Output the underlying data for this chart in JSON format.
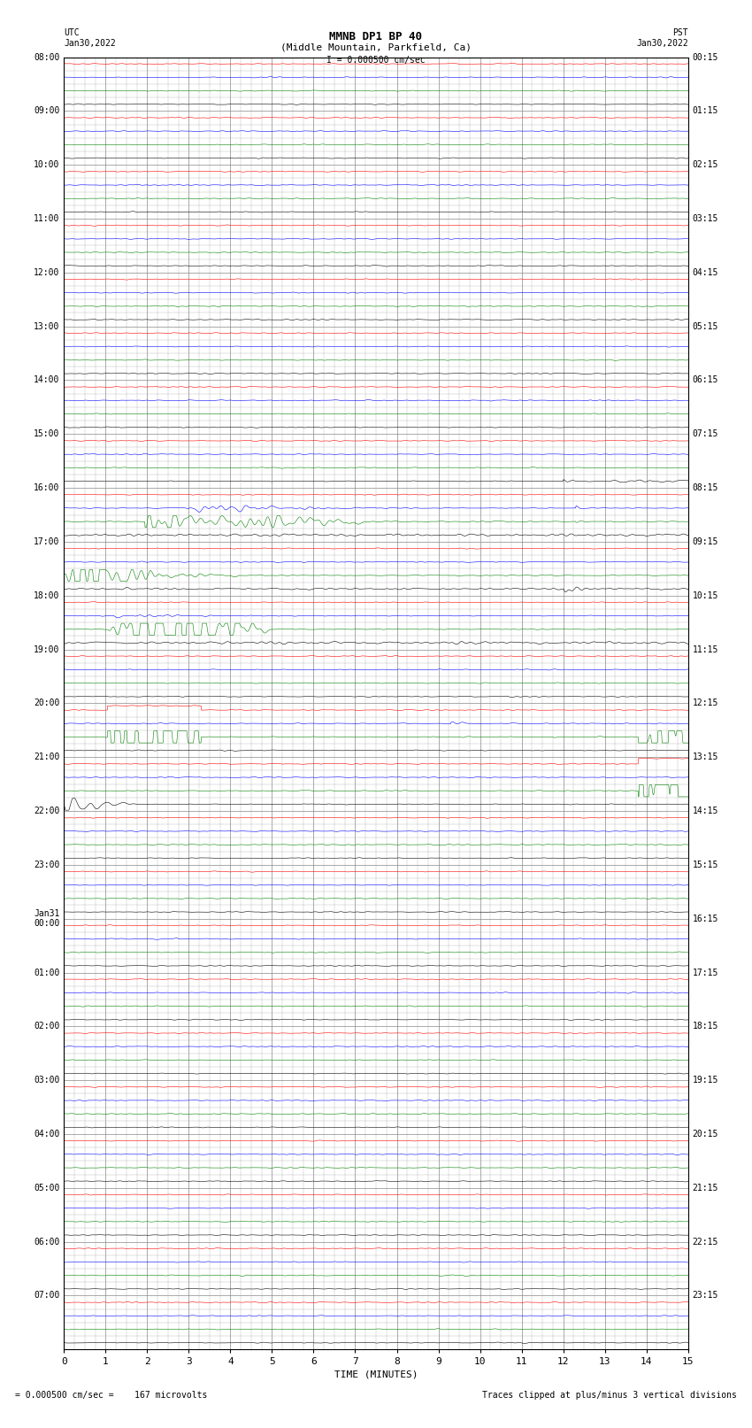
{
  "title_line1": "MMNB DP1 BP 40",
  "title_line2": "(Middle Mountain, Parkfield, Ca)",
  "scale_label": "I = 0.000500 cm/sec",
  "left_label_top": "UTC",
  "left_label_date": "Jan30,2022",
  "right_label_top": "PST",
  "right_label_date": "Jan30,2022",
  "bottom_label": "TIME (MINUTES)",
  "footer_left": "= 0.000500 cm/sec =    167 microvolts",
  "footer_right": "Traces clipped at plus/minus 3 vertical divisions",
  "xlabel_ticks": [
    0,
    1,
    2,
    3,
    4,
    5,
    6,
    7,
    8,
    9,
    10,
    11,
    12,
    13,
    14,
    15
  ],
  "utc_labels": [
    "08:00",
    "09:00",
    "10:00",
    "11:00",
    "12:00",
    "13:00",
    "14:00",
    "15:00",
    "16:00",
    "17:00",
    "18:00",
    "19:00",
    "20:00",
    "21:00",
    "22:00",
    "23:00",
    "Jan31\n00:00",
    "01:00",
    "02:00",
    "03:00",
    "04:00",
    "05:00",
    "06:00",
    "07:00"
  ],
  "pst_labels": [
    "00:15",
    "01:15",
    "02:15",
    "03:15",
    "04:15",
    "05:15",
    "06:15",
    "07:15",
    "08:15",
    "09:15",
    "10:15",
    "11:15",
    "12:15",
    "13:15",
    "14:15",
    "15:15",
    "16:15",
    "17:15",
    "18:15",
    "19:15",
    "20:15",
    "21:15",
    "22:15",
    "23:15"
  ],
  "n_rows": 24,
  "background_color": "#ffffff",
  "grid_color": "#888888",
  "trace_order": [
    "red",
    "blue",
    "green",
    "black"
  ],
  "noise_amplitude": 0.025,
  "base_noise": 0.012
}
